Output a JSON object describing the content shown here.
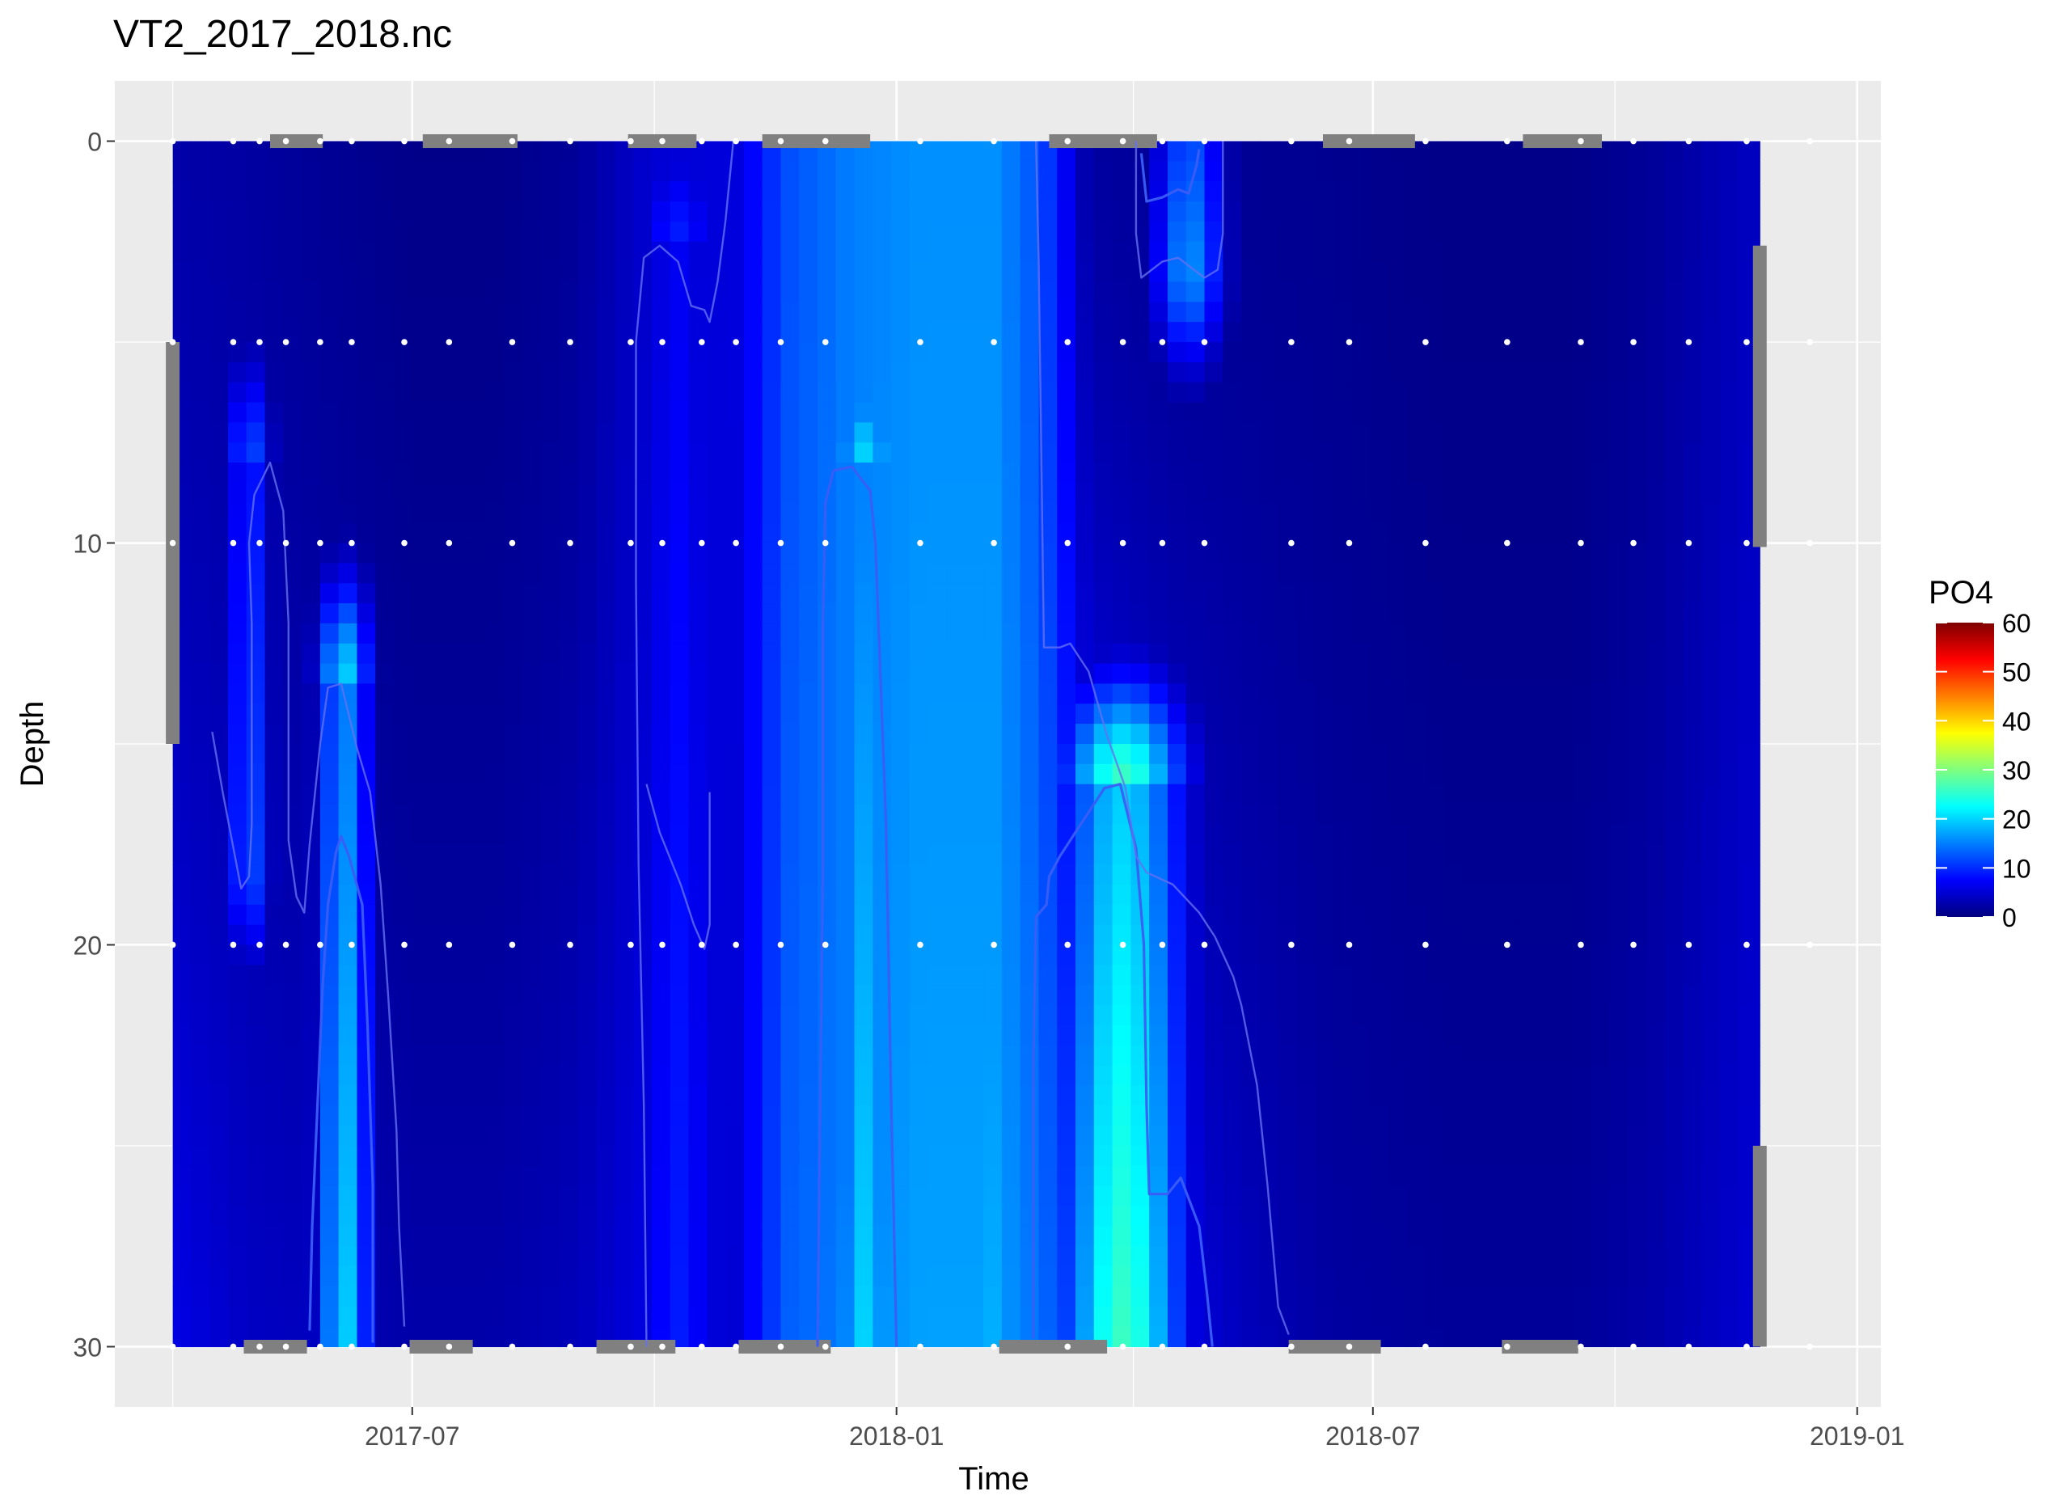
{
  "chart_data": {
    "type": "heatmap",
    "title": "VT2_2017_2018.nc",
    "xlabel": "Time",
    "ylabel": "Depth",
    "x_ticks": [
      "2017-07",
      "2018-01",
      "2018-07",
      "2019-01"
    ],
    "y_ticks": [
      0,
      10,
      20,
      30
    ],
    "y_reversed": true,
    "xlim": [
      "2017-03-10",
      "2019-01-10"
    ],
    "ylim": [
      -1.5,
      31.5
    ],
    "grid": true,
    "legend": {
      "title": "PO4",
      "position": "right",
      "ticks": [
        0,
        10,
        20,
        30,
        40,
        50,
        60
      ],
      "range": [
        0,
        60
      ],
      "colors": [
        "#00007F",
        "#0000FF",
        "#007FFF",
        "#00FFFF",
        "#7FFF7F",
        "#FFFF00",
        "#FF7F00",
        "#FF0000",
        "#7F0000"
      ]
    },
    "data_extent": {
      "time": [
        "2017-04-01",
        "2018-11-25"
      ],
      "depth": [
        0,
        30
      ]
    },
    "sample_dates": [
      "2017-04-01",
      "2017-04-24",
      "2017-05-04",
      "2017-05-14",
      "2017-05-27",
      "2017-06-08",
      "2017-06-28",
      "2017-07-15",
      "2017-08-08",
      "2017-08-30",
      "2017-09-22",
      "2017-10-04",
      "2017-10-19",
      "2017-11-01",
      "2017-11-18",
      "2017-12-05",
      "2018-01-10",
      "2018-02-07",
      "2018-03-07",
      "2018-03-28",
      "2018-04-12",
      "2018-04-28",
      "2018-05-31",
      "2018-06-22",
      "2018-07-21",
      "2018-08-21",
      "2018-09-18",
      "2018-10-08",
      "2018-10-29",
      "2018-11-20",
      "2018-12-14"
    ],
    "sample_depths": [
      0,
      5,
      10,
      20,
      30
    ],
    "masked_edges": [
      {
        "edge": "top",
        "from": "2017-05-08",
        "to": "2017-05-28"
      },
      {
        "edge": "top",
        "from": "2017-07-05",
        "to": "2017-08-10"
      },
      {
        "edge": "top",
        "from": "2017-09-21",
        "to": "2017-10-17"
      },
      {
        "edge": "top",
        "from": "2017-11-11",
        "to": "2017-12-22"
      },
      {
        "edge": "top",
        "from": "2018-02-28",
        "to": "2018-04-10"
      },
      {
        "edge": "top",
        "from": "2018-06-12",
        "to": "2018-07-17"
      },
      {
        "edge": "top",
        "from": "2018-08-27",
        "to": "2018-09-26"
      },
      {
        "edge": "bottom",
        "from": "2017-04-28",
        "to": "2017-05-22"
      },
      {
        "edge": "bottom",
        "from": "2017-06-30",
        "to": "2017-07-24"
      },
      {
        "edge": "bottom",
        "from": "2017-09-09",
        "to": "2017-10-09"
      },
      {
        "edge": "bottom",
        "from": "2017-11-02",
        "to": "2017-12-07"
      },
      {
        "edge": "bottom",
        "from": "2018-02-09",
        "to": "2018-03-22"
      },
      {
        "edge": "bottom",
        "from": "2018-05-30",
        "to": "2018-07-04"
      },
      {
        "edge": "bottom",
        "from": "2018-08-19",
        "to": "2018-09-17"
      },
      {
        "edge": "left",
        "from_depth": 5,
        "to_depth": 15
      },
      {
        "edge": "right",
        "from_depth": 2.6,
        "to_depth": 10.1
      },
      {
        "edge": "right",
        "from_depth": 25,
        "to_depth": 30
      }
    ],
    "features": [
      {
        "name": "deep plume June 2017",
        "time_from": "2017-05-20",
        "time_to": "2017-06-18",
        "peak_date": "2017-06-05",
        "depth_top": 13.5,
        "depth_bottom": 30,
        "peak": 20
      },
      {
        "name": "deep plume May 2017",
        "time_from": "2017-04-15",
        "time_to": "2017-05-10",
        "peak_date": "2017-04-30",
        "depth_top": 8,
        "depth_bottom": 18,
        "peak": 12
      },
      {
        "name": "winter high Dec 2017",
        "time_from": "2017-11-25",
        "time_to": "2018-01-08",
        "peak_date": "2017-12-20",
        "depth_top": 8,
        "depth_bottom": 30,
        "peak": 20
      },
      {
        "name": "winter background Jan-Feb 2018",
        "time_from": "2018-01-08",
        "time_to": "2018-02-28",
        "peak_date": "2018-02-05",
        "depth_top": 0,
        "depth_bottom": 30,
        "peak": 18
      },
      {
        "name": "spring plume Mar-Apr 2018",
        "time_from": "2018-02-24",
        "time_to": "2018-05-01",
        "peak_date": "2018-03-28",
        "depth_top": 16,
        "depth_bottom": 30,
        "peak": 26
      },
      {
        "name": "surface patch Apr 2018",
        "time_from": "2018-04-04",
        "time_to": "2018-05-12",
        "peak_date": "2018-04-22",
        "depth_top": 0,
        "depth_bottom": 3,
        "peak": 16
      },
      {
        "name": "moderate band Oct 2017",
        "time_from": "2017-09-20",
        "time_to": "2017-11-05",
        "peak_date": "2017-10-10",
        "depth_top": 2.5,
        "depth_bottom": 30,
        "peak": 9
      }
    ],
    "contours": [
      {
        "level": 10,
        "color": "#3A5DF6",
        "points": [
          [
            "2017-05-23",
            29.6
          ],
          [
            "2017-05-24",
            27
          ],
          [
            "2017-05-26",
            24
          ],
          [
            "2017-05-28",
            21
          ],
          [
            "2017-05-30",
            19
          ],
          [
            "2017-06-02",
            17.7
          ],
          [
            "2017-06-04",
            17.3
          ],
          [
            "2017-06-07",
            17.8
          ],
          [
            "2017-06-12",
            19
          ],
          [
            "2017-06-14",
            22
          ],
          [
            "2017-06-16",
            26
          ],
          [
            "2017-06-16",
            29.9
          ]
        ]
      },
      {
        "level": 10,
        "color": "#3A5DF6",
        "points": [
          [
            "2017-12-02",
            30
          ],
          [
            "2017-12-03",
            24
          ],
          [
            "2017-12-04",
            18
          ],
          [
            "2017-12-04",
            12
          ],
          [
            "2017-12-05",
            9
          ],
          [
            "2017-12-08",
            8.2
          ],
          [
            "2017-12-15",
            8.1
          ],
          [
            "2017-12-22",
            8.7
          ],
          [
            "2017-12-24",
            10
          ],
          [
            "2017-12-28",
            17
          ],
          [
            "2017-12-30",
            24
          ],
          [
            "2018-01-01",
            30
          ]
        ]
      },
      {
        "level": 10,
        "color": "#3A5DF6",
        "points": [
          [
            "2018-02-22",
            29.8
          ],
          [
            "2018-02-22",
            23
          ],
          [
            "2018-02-23",
            19.3
          ],
          [
            "2018-02-27",
            19
          ],
          [
            "2018-02-28",
            18.3
          ],
          [
            "2018-03-04",
            17.8
          ],
          [
            "2018-03-12",
            17
          ],
          [
            "2018-03-21",
            16.1
          ],
          [
            "2018-03-27",
            16
          ],
          [
            "2018-04-02",
            17.6
          ],
          [
            "2018-04-05",
            20
          ],
          [
            "2018-04-06",
            24
          ],
          [
            "2018-04-07",
            26.2
          ],
          [
            "2018-04-14",
            26.2
          ],
          [
            "2018-04-19",
            25.8
          ],
          [
            "2018-04-26",
            27
          ],
          [
            "2018-04-29",
            28.7
          ],
          [
            "2018-05-01",
            30
          ]
        ]
      },
      {
        "level": 10,
        "color": "#3A5DF6",
        "points": [
          [
            "2018-04-04",
            0.3
          ],
          [
            "2018-04-06",
            1.5
          ],
          [
            "2018-04-12",
            1.4
          ],
          [
            "2018-04-18",
            1.2
          ],
          [
            "2018-04-22",
            1.3
          ],
          [
            "2018-04-25",
            0.6
          ],
          [
            "2018-04-26",
            0.2
          ]
        ]
      },
      {
        "level": 5,
        "color": "#6470F0",
        "points": [
          [
            "2017-04-16",
            14.7
          ],
          [
            "2017-04-20",
            16.2
          ],
          [
            "2017-04-27",
            18.6
          ],
          [
            "2017-04-30",
            18.3
          ],
          [
            "2017-05-01",
            17
          ],
          [
            "2017-05-01",
            12
          ],
          [
            "2017-04-30",
            10
          ],
          [
            "2017-05-02",
            8.8
          ],
          [
            "2017-05-08",
            8
          ],
          [
            "2017-05-13",
            9.2
          ],
          [
            "2017-05-15",
            12
          ],
          [
            "2017-05-15",
            17.4
          ],
          [
            "2017-05-18",
            18.8
          ],
          [
            "2017-05-21",
            19.2
          ],
          [
            "2017-05-23",
            17.5
          ],
          [
            "2017-05-27",
            15
          ],
          [
            "2017-05-30",
            13.6
          ],
          [
            "2017-06-04",
            13.5
          ],
          [
            "2017-06-10",
            15.1
          ],
          [
            "2017-06-15",
            16.2
          ],
          [
            "2017-06-19",
            18.5
          ],
          [
            "2017-06-22",
            21.4
          ],
          [
            "2017-06-25",
            24.6
          ],
          [
            "2017-06-26",
            27
          ],
          [
            "2017-06-28",
            29.5
          ]
        ]
      },
      {
        "level": 5,
        "color": "#6470F0",
        "points": [
          [
            "2017-09-28",
            30
          ],
          [
            "2017-09-27",
            24
          ],
          [
            "2017-09-25",
            18
          ],
          [
            "2017-09-24",
            11
          ],
          [
            "2017-09-24",
            5
          ],
          [
            "2017-09-27",
            2.9
          ],
          [
            "2017-10-03",
            2.6
          ],
          [
            "2017-10-10",
            3
          ],
          [
            "2017-10-15",
            4.1
          ],
          [
            "2017-10-20",
            4.2
          ],
          [
            "2017-10-22",
            4.5
          ],
          [
            "2017-10-25",
            3.5
          ],
          [
            "2017-10-28",
            2
          ],
          [
            "2017-10-31",
            0
          ]
        ]
      },
      {
        "level": 5,
        "color": "#6470F0",
        "points": [
          [
            "2017-09-28",
            16
          ],
          [
            "2017-10-03",
            17.2
          ],
          [
            "2017-10-11",
            18.5
          ],
          [
            "2017-10-16",
            19.5
          ],
          [
            "2017-10-20",
            20.1
          ],
          [
            "2017-10-22",
            19.5
          ],
          [
            "2017-10-22",
            16.2
          ]
        ]
      },
      {
        "level": 5,
        "color": "#6470F0",
        "points": [
          [
            "2018-02-23",
            0
          ],
          [
            "2018-02-24",
            3
          ],
          [
            "2018-02-26",
            12.6
          ],
          [
            "2018-03-04",
            12.6
          ],
          [
            "2018-03-08",
            12.5
          ],
          [
            "2018-03-15",
            13.2
          ],
          [
            "2018-03-22",
            14.8
          ],
          [
            "2018-03-29",
            16.1
          ],
          [
            "2018-04-02",
            17.8
          ],
          [
            "2018-04-06",
            18.2
          ],
          [
            "2018-04-16",
            18.5
          ],
          [
            "2018-04-26",
            19.2
          ],
          [
            "2018-05-02",
            19.8
          ],
          [
            "2018-05-09",
            20.8
          ],
          [
            "2018-05-12",
            21.5
          ],
          [
            "2018-05-18",
            23.5
          ],
          [
            "2018-05-22",
            26
          ],
          [
            "2018-05-26",
            29
          ],
          [
            "2018-05-30",
            29.7
          ]
        ]
      },
      {
        "level": 5,
        "color": "#6470F0",
        "points": [
          [
            "2018-04-02",
            0
          ],
          [
            "2018-04-02",
            2.3
          ],
          [
            "2018-04-04",
            3.4
          ],
          [
            "2018-04-12",
            3
          ],
          [
            "2018-04-18",
            2.9
          ],
          [
            "2018-04-28",
            3.4
          ],
          [
            "2018-05-03",
            3.2
          ],
          [
            "2018-05-05",
            2.3
          ],
          [
            "2018-05-05",
            0
          ]
        ]
      }
    ]
  }
}
